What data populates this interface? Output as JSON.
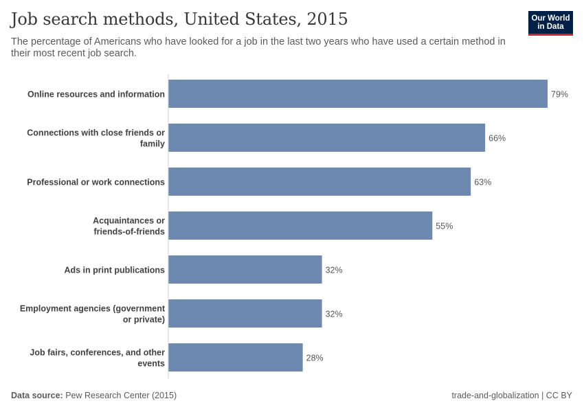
{
  "header": {
    "title": "Job search methods, United States, 2015",
    "subtitle": "The percentage of Americans who have looked for a job in the last two years who have used a certain method in their most recent job search."
  },
  "logo": {
    "line1": "Our World",
    "line2": "in Data"
  },
  "footer": {
    "source_label": "Data source:",
    "source_value": "Pew Research Center (2015)",
    "license": "trade-and-globalization | CC BY"
  },
  "colors": {
    "bar": "#6e89b0",
    "label": "#404040",
    "value": "#555555",
    "axis": "#cccccc"
  },
  "chart_data": {
    "type": "bar",
    "orientation": "horizontal",
    "title": "Job search methods, United States, 2015",
    "categories": [
      "Online resources and information",
      "Connections with close friends or family",
      "Professional or work connections",
      "Acquaintances or friends-of-friends",
      "Ads in print publications",
      "Employment agencies (government or private)",
      "Job fairs, conferences, and other events"
    ],
    "values": [
      79,
      66,
      63,
      55,
      32,
      32,
      28
    ],
    "value_labels": [
      "79%",
      "66%",
      "63%",
      "55%",
      "32%",
      "32%",
      "28%"
    ],
    "unit": "%",
    "xlim": [
      0,
      79
    ]
  }
}
